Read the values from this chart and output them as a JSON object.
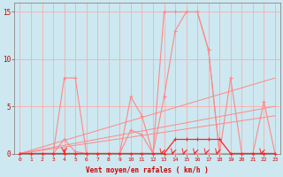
{
  "background_color": "#cde8f0",
  "grid_color": "#ffaaaa",
  "line_color_dark": "#ff2222",
  "line_color_light": "#ff8888",
  "xlabel": "Vent moyen/en rafales ( km/h )",
  "xlabel_color": "#cc0000",
  "tick_color": "#cc0000",
  "xlim": [
    -0.5,
    23.5
  ],
  "ylim": [
    0,
    16
  ],
  "yticks": [
    0,
    5,
    10,
    15
  ],
  "xticks": [
    0,
    1,
    2,
    3,
    4,
    5,
    6,
    7,
    8,
    9,
    10,
    11,
    12,
    13,
    14,
    15,
    16,
    17,
    18,
    19,
    20,
    21,
    22,
    23
  ],
  "series_rafales_x": [
    0,
    1,
    2,
    3,
    4,
    5,
    6,
    7,
    8,
    9,
    10,
    11,
    12,
    13,
    14,
    15,
    16,
    17,
    18,
    19,
    20,
    21,
    22,
    23
  ],
  "series_rafales_y": [
    0,
    0,
    0,
    0,
    8,
    8,
    0,
    0,
    0,
    0,
    6,
    4,
    0,
    15,
    15,
    15,
    15,
    11,
    0,
    0,
    0,
    0,
    0,
    0
  ],
  "series_moyen_x": [
    0,
    1,
    2,
    3,
    4,
    5,
    6,
    7,
    8,
    9,
    10,
    11,
    12,
    13,
    14,
    15,
    16,
    17,
    18,
    19,
    20,
    21,
    22,
    23
  ],
  "series_moyen_y": [
    0,
    0,
    0,
    0,
    1.5,
    0.2,
    0,
    0,
    0,
    0,
    2.5,
    2,
    0,
    6,
    13,
    15,
    15,
    11,
    0,
    0,
    0,
    0,
    0,
    0
  ],
  "series_small_x": [
    0,
    1,
    2,
    3,
    4,
    5,
    6,
    7,
    8,
    9,
    10,
    11,
    12,
    13,
    14,
    15,
    16,
    17,
    18,
    19,
    20,
    21,
    22,
    23
  ],
  "series_small_y": [
    0,
    0,
    0,
    0,
    0,
    0,
    0,
    0,
    0,
    0,
    0,
    0,
    0,
    0,
    1.5,
    1.5,
    1.5,
    1.5,
    1.5,
    0,
    0,
    0,
    0,
    0
  ],
  "series_right_x": [
    0,
    1,
    2,
    3,
    4,
    5,
    6,
    7,
    8,
    9,
    10,
    11,
    12,
    13,
    14,
    15,
    16,
    17,
    18,
    19,
    20,
    21,
    22,
    23
  ],
  "series_right_y": [
    0,
    0,
    0,
    0,
    0,
    0,
    0,
    0,
    0,
    0,
    0,
    0,
    0,
    0,
    0,
    0,
    0,
    0,
    0,
    8,
    0,
    0,
    5.5,
    0
  ],
  "trend1_x": [
    0,
    23
  ],
  "trend1_y": [
    0,
    8
  ],
  "trend2_x": [
    0,
    23
  ],
  "trend2_y": [
    0,
    5
  ],
  "trend3_x": [
    0,
    23
  ],
  "trend3_y": [
    0,
    4
  ],
  "down_arrows_x": [
    4
  ],
  "curved_arrows_x": [
    13,
    14,
    15,
    16,
    17,
    18,
    22
  ]
}
